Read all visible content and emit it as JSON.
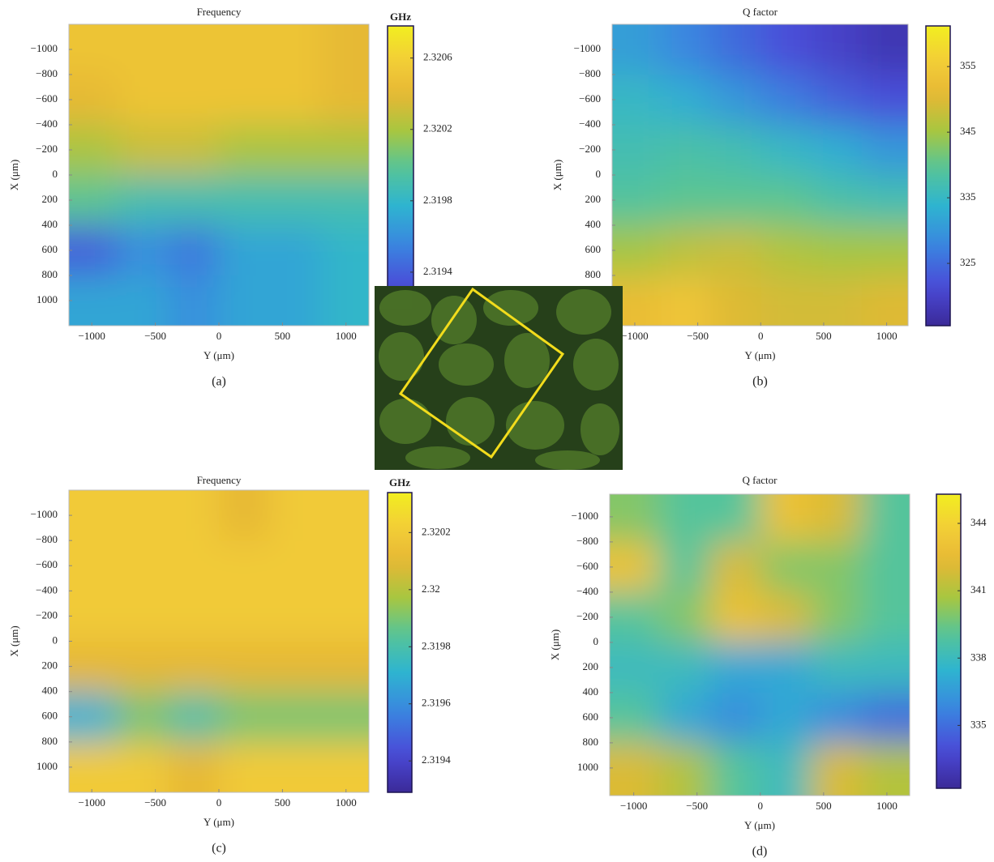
{
  "chart_data": [
    {
      "type": "heatmap",
      "title": "Frequency",
      "colorbar_label": "GHz",
      "xlabel": "Y (μm)",
      "ylabel": "X (μm)",
      "panel_label": "(a)",
      "colormap": "parula",
      "x": [
        -1000,
        -600,
        -200,
        200,
        600,
        1000
      ],
      "y": [
        -1000,
        -600,
        -200,
        200,
        600,
        1000
      ],
      "z": [
        [
          2.3205,
          2.3205,
          2.3205,
          2.3205,
          2.3205,
          2.3204
        ],
        [
          2.3204,
          2.3205,
          2.3205,
          2.3205,
          2.3205,
          2.3204
        ],
        [
          2.3202,
          2.3203,
          2.3203,
          2.3202,
          2.3202,
          2.3202
        ],
        [
          2.32,
          2.3199,
          2.3199,
          2.3199,
          2.3199,
          2.3199
        ],
        [
          2.3194,
          2.3196,
          2.3195,
          2.3197,
          2.3197,
          2.3198
        ],
        [
          2.3197,
          2.3197,
          2.3196,
          2.3197,
          2.3197,
          2.3198
        ]
      ],
      "xlim": [
        -1180,
        1180
      ],
      "ylim": [
        -1200,
        1200
      ],
      "xticks": [
        {
          "value": -1000,
          "label": "−1000"
        },
        {
          "value": -500,
          "label": "−500"
        },
        0,
        500,
        1000
      ],
      "yticks": [
        {
          "value": -1000,
          "label": "−1000"
        },
        {
          "value": -800,
          "label": "−800"
        },
        {
          "value": -600,
          "label": "−600"
        },
        {
          "value": -400,
          "label": "−400"
        },
        {
          "value": -200,
          "label": "−200"
        },
        0,
        200,
        400,
        600,
        800,
        1000
      ],
      "clim": [
        2.3191,
        2.32078
      ],
      "cticks": [
        2.3194,
        2.3198,
        2.3202,
        2.3206
      ]
    },
    {
      "type": "heatmap",
      "title": "Q factor",
      "xlabel": "Y (μm)",
      "ylabel": "X (μm)",
      "panel_label": "(b)",
      "colormap": "parula",
      "x": [
        -1000,
        -600,
        -200,
        200,
        600,
        1000
      ],
      "y": [
        -1000,
        -600,
        -200,
        200,
        600,
        1000
      ],
      "z": [
        [
          331,
          328,
          325,
          322,
          320,
          318
        ],
        [
          335,
          333,
          330,
          327,
          324,
          322
        ],
        [
          337,
          338,
          337,
          335,
          333,
          330
        ],
        [
          339,
          340,
          340,
          340,
          338,
          337
        ],
        [
          345,
          347,
          348,
          346,
          345,
          345
        ],
        [
          352,
          354,
          350,
          349,
          349,
          350
        ]
      ],
      "xlim": [
        -1180,
        1170
      ],
      "ylim": [
        -1200,
        1200
      ],
      "xticks": [
        {
          "value": -1000,
          "label": "−1000"
        },
        {
          "value": -500,
          "label": "−500"
        },
        0,
        500,
        1000
      ],
      "yticks": [
        {
          "value": -1000,
          "label": "−1000"
        },
        {
          "value": -800,
          "label": "−800"
        },
        {
          "value": -600,
          "label": "−600"
        },
        {
          "value": -400,
          "label": "−400"
        },
        {
          "value": -200,
          "label": "−200"
        },
        0,
        200,
        400,
        600,
        800
      ],
      "clim": [
        315.5,
        361.2
      ],
      "cticks": [
        325,
        335,
        345,
        355
      ]
    },
    {
      "type": "heatmap",
      "title": "Frequency",
      "colorbar_label": "GHz",
      "xlabel": "Y (μm)",
      "ylabel": "X (μm)",
      "panel_label": "(c)",
      "colormap": "parula",
      "x": [
        -1000,
        -600,
        -200,
        200,
        600,
        1000
      ],
      "y": [
        -1000,
        -600,
        -200,
        200,
        600,
        1000
      ],
      "z": [
        [
          2.3202,
          2.3202,
          2.3202,
          2.3201,
          2.3202,
          2.3202
        ],
        [
          2.3202,
          2.3202,
          2.3202,
          2.3202,
          2.3202,
          2.3202
        ],
        [
          2.3202,
          2.3202,
          2.3202,
          2.3202,
          2.3202,
          2.3202
        ],
        [
          2.3201,
          2.3201,
          2.3201,
          2.3201,
          2.3201,
          2.3201
        ],
        [
          2.3197,
          2.3199,
          2.3198,
          2.3199,
          2.3199,
          2.3199
        ],
        [
          2.3202,
          2.3202,
          2.3201,
          2.3202,
          2.3202,
          2.3202
        ]
      ],
      "xlim": [
        -1180,
        1180
      ],
      "ylim": [
        -1200,
        1200
      ],
      "xticks": [
        {
          "value": -1000,
          "label": "−1000"
        },
        {
          "value": -500,
          "label": "−500"
        },
        0,
        500,
        1000
      ],
      "yticks": [
        {
          "value": -1000,
          "label": "−1000"
        },
        {
          "value": -800,
          "label": "−800"
        },
        {
          "value": -600,
          "label": "−600"
        },
        {
          "value": -400,
          "label": "−400"
        },
        {
          "value": -200,
          "label": "−200"
        },
        0,
        200,
        400,
        600,
        800,
        1000
      ],
      "clim": [
        2.31929,
        2.32034
      ],
      "cticks": [
        2.3194,
        2.3196,
        2.3198,
        2.32,
        2.3202
      ]
    },
    {
      "type": "heatmap",
      "title": "Q factor",
      "xlabel": "Y (μm)",
      "ylabel": "X (μm)",
      "panel_label": "(d)",
      "colormap": "parula",
      "x": [
        -1000,
        -600,
        -200,
        200,
        600,
        1000
      ],
      "y": [
        -1000,
        -600,
        -200,
        200,
        600,
        1000
      ],
      "z": [
        [
          340,
          339,
          339,
          343,
          342,
          339
        ],
        [
          343,
          339,
          342,
          340,
          340,
          339
        ],
        [
          339,
          340,
          343,
          342,
          340,
          339
        ],
        [
          338,
          338,
          337,
          337,
          338,
          338
        ],
        [
          339,
          337,
          336,
          337,
          336,
          335
        ],
        [
          342,
          341,
          339,
          338,
          342,
          341
        ]
      ],
      "xlim": [
        -1190,
        1180
      ],
      "ylim": [
        -1180,
        1220
      ],
      "xticks": [
        {
          "value": -1000,
          "label": "−1000"
        },
        {
          "value": -500,
          "label": "−500"
        },
        0,
        500,
        1000
      ],
      "yticks": [
        {
          "value": -1000,
          "label": "−1000"
        },
        {
          "value": -800,
          "label": "−800"
        },
        {
          "value": -600,
          "label": "−600"
        },
        {
          "value": -400,
          "label": "−400"
        },
        {
          "value": -200,
          "label": "−200"
        },
        0,
        200,
        400,
        600,
        800,
        1000
      ],
      "clim": [
        332.2,
        345.3
      ],
      "cticks": [
        335,
        338,
        341,
        344
      ]
    }
  ]
}
